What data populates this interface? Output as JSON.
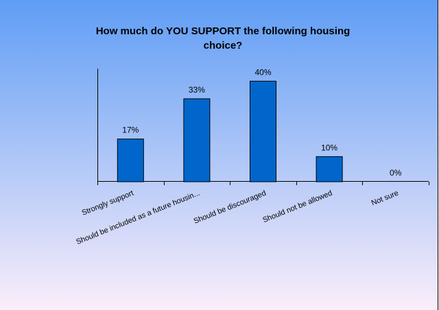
{
  "chart_data": {
    "type": "bar",
    "title_lines": [
      "How much do YOU SUPPORT the following housing",
      "choice?"
    ],
    "categories": [
      "Strongly support",
      "Should be included as a future housin...",
      "Should be discouraged",
      "Should not be allowed",
      "Not sure"
    ],
    "values": [
      17,
      33,
      40,
      10,
      0
    ],
    "data_labels": [
      "17%",
      "33%",
      "40%",
      "10%",
      "0%"
    ],
    "ylim": [
      0,
      45
    ],
    "grid": false,
    "legend": "none",
    "colors": {
      "bar": "#0066cc",
      "bar_border": "#000000",
      "background_top": "#5f9df5",
      "background_bottom": "#fbeefa"
    }
  }
}
